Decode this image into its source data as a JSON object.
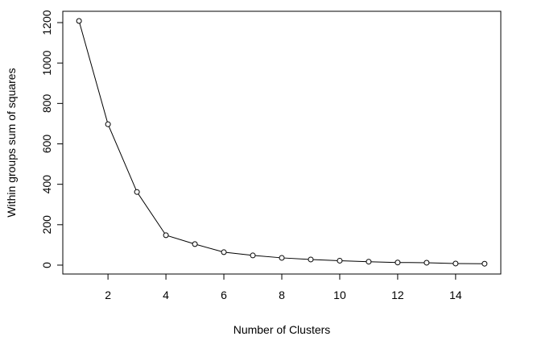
{
  "chart_data": {
    "type": "line",
    "x_label": "Number of Clusters",
    "y_label": "Within groups sum of squares",
    "x": [
      1,
      2,
      3,
      4,
      5,
      6,
      7,
      8,
      9,
      10,
      11,
      12,
      13,
      14,
      15
    ],
    "values": [
      1208,
      697,
      362,
      148,
      104,
      64,
      48,
      36,
      28,
      22,
      17,
      13,
      12,
      8,
      7
    ],
    "color": "#000000",
    "markers": true,
    "xlim": [
      0.44,
      15.56
    ],
    "xticks": [
      2,
      4,
      6,
      8,
      10,
      12,
      14
    ],
    "ylim": [
      -44,
      1256
    ],
    "yticks": [
      0,
      200,
      400,
      600,
      800,
      1000,
      1200
    ]
  }
}
